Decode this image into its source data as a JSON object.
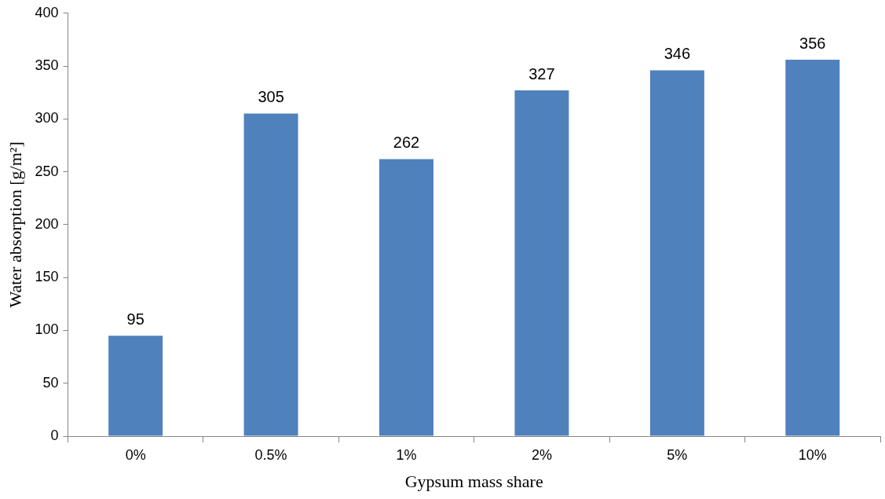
{
  "chart_data": {
    "type": "bar",
    "xlabel": "Gypsum mass share",
    "ylabel": "Water absorption [g/m²]",
    "categories": [
      "0%",
      "0.5%",
      "1%",
      "2%",
      "5%",
      "10%"
    ],
    "values": [
      95,
      305,
      262,
      327,
      346,
      356
    ],
    "color": "#4f81bd",
    "ylim": [
      0,
      400
    ],
    "yticks": [
      0,
      50,
      100,
      150,
      200,
      250,
      300,
      350,
      400
    ],
    "grid": false,
    "data_labels": true
  }
}
